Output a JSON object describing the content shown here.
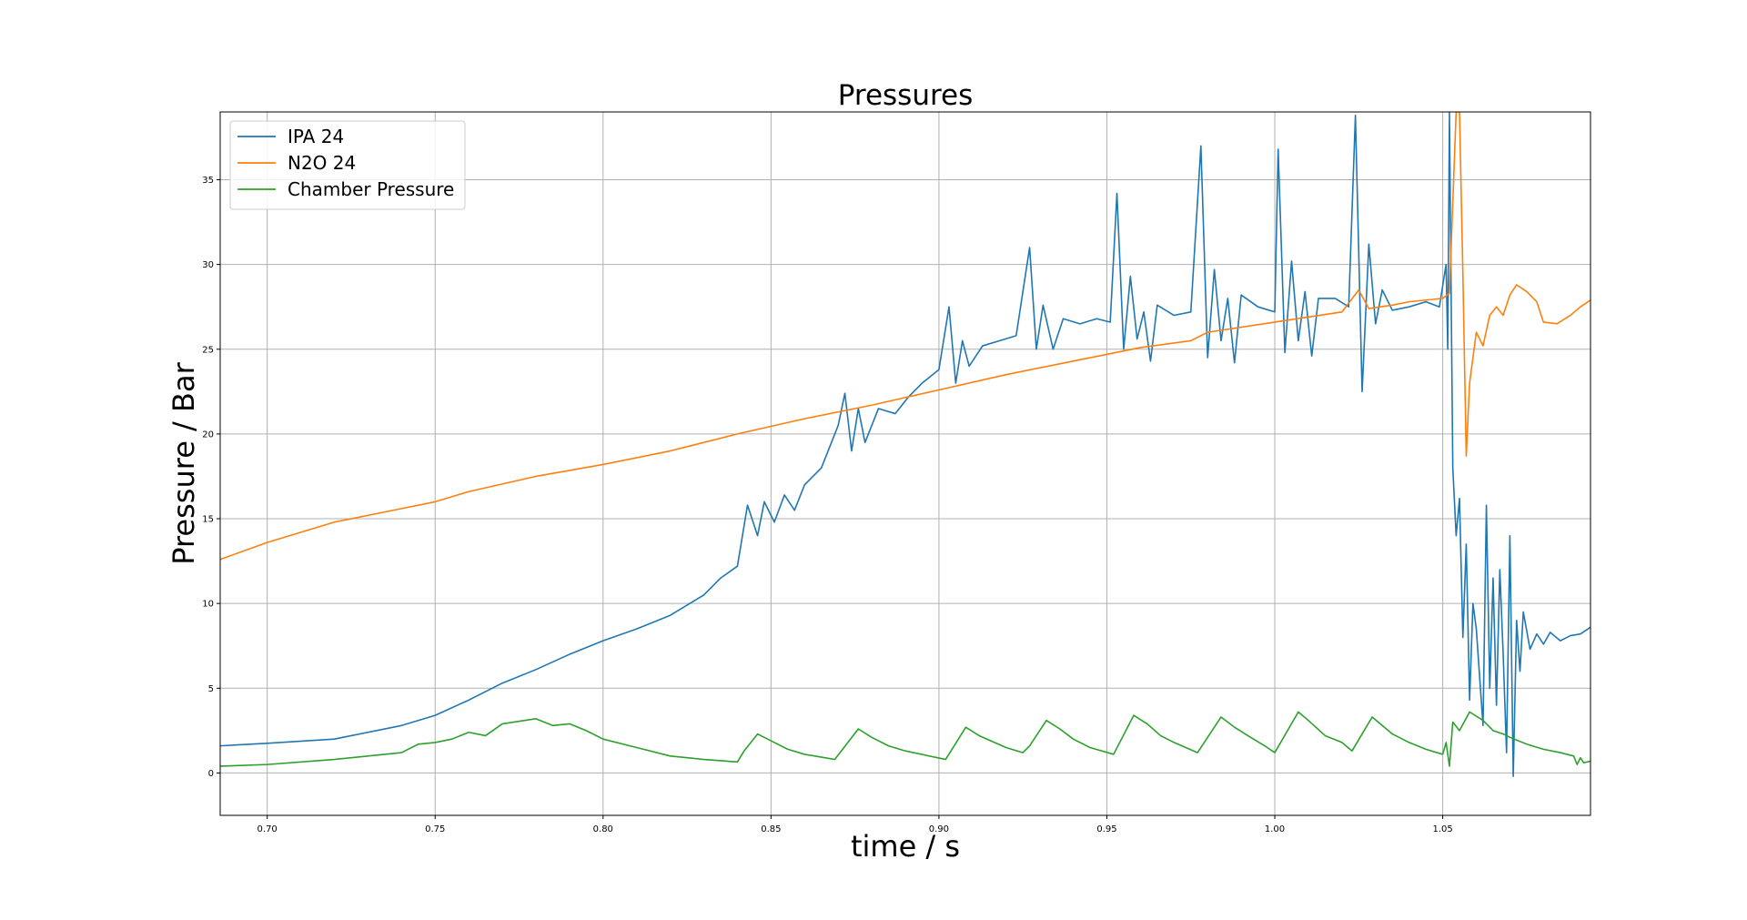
{
  "chart_data": {
    "type": "line",
    "title": "Pressures",
    "xlabel": "time / s",
    "ylabel": "Pressure / Bar",
    "xlim": [
      0.686,
      1.094
    ],
    "ylim": [
      -2.5,
      39
    ],
    "grid": true,
    "legend_position": "top-left",
    "xticks": [
      0.7,
      0.75,
      0.8,
      0.85,
      0.9,
      0.95,
      1.0,
      1.05
    ],
    "xtick_labels": [
      "0.70",
      "0.75",
      "0.80",
      "0.85",
      "0.90",
      "0.95",
      "1.00",
      "1.05"
    ],
    "yticks": [
      0,
      5,
      10,
      15,
      20,
      25,
      30,
      35
    ],
    "ytick_labels": [
      "0",
      "5",
      "10",
      "15",
      "20",
      "25",
      "30",
      "35"
    ],
    "series": [
      {
        "name": "IPA 24",
        "color": "#1f77b4",
        "points": [
          [
            0.686,
            1.6
          ],
          [
            0.7,
            1.75
          ],
          [
            0.72,
            2.0
          ],
          [
            0.74,
            2.8
          ],
          [
            0.75,
            3.4
          ],
          [
            0.76,
            4.3
          ],
          [
            0.77,
            5.3
          ],
          [
            0.78,
            6.1
          ],
          [
            0.79,
            7.0
          ],
          [
            0.8,
            7.8
          ],
          [
            0.81,
            8.5
          ],
          [
            0.82,
            9.3
          ],
          [
            0.83,
            10.5
          ],
          [
            0.835,
            11.5
          ],
          [
            0.84,
            12.2
          ],
          [
            0.843,
            15.8
          ],
          [
            0.846,
            14.0
          ],
          [
            0.848,
            16.0
          ],
          [
            0.851,
            14.8
          ],
          [
            0.854,
            16.4
          ],
          [
            0.857,
            15.5
          ],
          [
            0.86,
            17.0
          ],
          [
            0.865,
            18.0
          ],
          [
            0.87,
            20.5
          ],
          [
            0.872,
            22.4
          ],
          [
            0.874,
            19.0
          ],
          [
            0.876,
            21.5
          ],
          [
            0.878,
            19.5
          ],
          [
            0.882,
            21.5
          ],
          [
            0.887,
            21.2
          ],
          [
            0.891,
            22.2
          ],
          [
            0.895,
            23.0
          ],
          [
            0.9,
            23.8
          ],
          [
            0.903,
            27.5
          ],
          [
            0.905,
            23.0
          ],
          [
            0.907,
            25.5
          ],
          [
            0.909,
            24.0
          ],
          [
            0.913,
            25.2
          ],
          [
            0.918,
            25.5
          ],
          [
            0.923,
            25.8
          ],
          [
            0.927,
            31.0
          ],
          [
            0.929,
            25.0
          ],
          [
            0.931,
            27.6
          ],
          [
            0.934,
            25.0
          ],
          [
            0.937,
            26.8
          ],
          [
            0.942,
            26.5
          ],
          [
            0.947,
            26.8
          ],
          [
            0.951,
            26.6
          ],
          [
            0.953,
            34.2
          ],
          [
            0.955,
            25.0
          ],
          [
            0.957,
            29.3
          ],
          [
            0.959,
            25.6
          ],
          [
            0.961,
            27.2
          ],
          [
            0.963,
            24.3
          ],
          [
            0.965,
            27.6
          ],
          [
            0.97,
            27.0
          ],
          [
            0.975,
            27.2
          ],
          [
            0.978,
            37.0
          ],
          [
            0.98,
            24.5
          ],
          [
            0.982,
            29.7
          ],
          [
            0.984,
            25.5
          ],
          [
            0.986,
            28.0
          ],
          [
            0.988,
            24.2
          ],
          [
            0.99,
            28.2
          ],
          [
            0.995,
            27.5
          ],
          [
            1.0,
            27.2
          ],
          [
            1.001,
            36.8
          ],
          [
            1.003,
            24.8
          ],
          [
            1.005,
            30.2
          ],
          [
            1.007,
            25.5
          ],
          [
            1.009,
            28.4
          ],
          [
            1.011,
            24.6
          ],
          [
            1.013,
            28.0
          ],
          [
            1.018,
            28.0
          ],
          [
            1.022,
            27.5
          ],
          [
            1.024,
            38.8
          ],
          [
            1.026,
            22.5
          ],
          [
            1.028,
            31.2
          ],
          [
            1.03,
            26.5
          ],
          [
            1.032,
            28.5
          ],
          [
            1.035,
            27.3
          ],
          [
            1.04,
            27.5
          ],
          [
            1.045,
            27.8
          ],
          [
            1.049,
            27.5
          ],
          [
            1.051,
            30.0
          ],
          [
            1.0515,
            25.0
          ],
          [
            1.052,
            39.0
          ],
          [
            1.053,
            18.0
          ],
          [
            1.054,
            14.0
          ],
          [
            1.055,
            16.2
          ],
          [
            1.056,
            8.0
          ],
          [
            1.057,
            13.5
          ],
          [
            1.058,
            4.3
          ],
          [
            1.059,
            10.0
          ],
          [
            1.06,
            8.5
          ],
          [
            1.062,
            2.8
          ],
          [
            1.063,
            15.8
          ],
          [
            1.064,
            5.0
          ],
          [
            1.065,
            11.5
          ],
          [
            1.066,
            4.0
          ],
          [
            1.067,
            12.0
          ],
          [
            1.068,
            7.0
          ],
          [
            1.069,
            1.2
          ],
          [
            1.07,
            14.0
          ],
          [
            1.071,
            -0.2
          ],
          [
            1.072,
            9.0
          ],
          [
            1.073,
            6.0
          ],
          [
            1.074,
            9.5
          ],
          [
            1.076,
            7.3
          ],
          [
            1.078,
            8.2
          ],
          [
            1.08,
            7.6
          ],
          [
            1.082,
            8.3
          ],
          [
            1.085,
            7.8
          ],
          [
            1.088,
            8.1
          ],
          [
            1.091,
            8.2
          ],
          [
            1.094,
            8.6
          ]
        ]
      },
      {
        "name": "N2O 24",
        "color": "#ff7f0e",
        "points": [
          [
            0.686,
            12.6
          ],
          [
            0.7,
            13.6
          ],
          [
            0.72,
            14.8
          ],
          [
            0.74,
            15.6
          ],
          [
            0.75,
            16.0
          ],
          [
            0.76,
            16.6
          ],
          [
            0.78,
            17.5
          ],
          [
            0.8,
            18.2
          ],
          [
            0.82,
            19.0
          ],
          [
            0.84,
            20.0
          ],
          [
            0.86,
            20.9
          ],
          [
            0.88,
            21.7
          ],
          [
            0.9,
            22.6
          ],
          [
            0.92,
            23.5
          ],
          [
            0.94,
            24.3
          ],
          [
            0.96,
            25.1
          ],
          [
            0.975,
            25.5
          ],
          [
            0.98,
            26.0
          ],
          [
            1.0,
            26.6
          ],
          [
            1.02,
            27.2
          ],
          [
            1.025,
            28.5
          ],
          [
            1.028,
            27.4
          ],
          [
            1.035,
            27.6
          ],
          [
            1.04,
            27.8
          ],
          [
            1.05,
            28.0
          ],
          [
            1.052,
            28.3
          ],
          [
            1.054,
            39.0
          ],
          [
            1.055,
            39.0
          ],
          [
            1.056,
            29.5
          ],
          [
            1.057,
            18.7
          ],
          [
            1.058,
            23.0
          ],
          [
            1.06,
            26.0
          ],
          [
            1.062,
            25.2
          ],
          [
            1.064,
            27.0
          ],
          [
            1.066,
            27.5
          ],
          [
            1.068,
            27.0
          ],
          [
            1.07,
            28.2
          ],
          [
            1.072,
            28.8
          ],
          [
            1.075,
            28.4
          ],
          [
            1.078,
            27.8
          ],
          [
            1.08,
            26.6
          ],
          [
            1.084,
            26.5
          ],
          [
            1.088,
            27.0
          ],
          [
            1.091,
            27.5
          ],
          [
            1.094,
            27.9
          ]
        ]
      },
      {
        "name": "Chamber Pressure",
        "color": "#2ca02c",
        "points": [
          [
            0.686,
            0.4
          ],
          [
            0.7,
            0.5
          ],
          [
            0.72,
            0.8
          ],
          [
            0.74,
            1.2
          ],
          [
            0.745,
            1.7
          ],
          [
            0.75,
            1.8
          ],
          [
            0.755,
            2.0
          ],
          [
            0.76,
            2.4
          ],
          [
            0.765,
            2.2
          ],
          [
            0.77,
            2.9
          ],
          [
            0.78,
            3.2
          ],
          [
            0.785,
            2.8
          ],
          [
            0.79,
            2.9
          ],
          [
            0.795,
            2.5
          ],
          [
            0.8,
            2.0
          ],
          [
            0.81,
            1.5
          ],
          [
            0.82,
            1.0
          ],
          [
            0.83,
            0.8
          ],
          [
            0.84,
            0.65
          ],
          [
            0.842,
            1.3
          ],
          [
            0.846,
            2.3
          ],
          [
            0.85,
            1.9
          ],
          [
            0.855,
            1.4
          ],
          [
            0.86,
            1.1
          ],
          [
            0.869,
            0.8
          ],
          [
            0.876,
            2.6
          ],
          [
            0.88,
            2.1
          ],
          [
            0.885,
            1.6
          ],
          [
            0.89,
            1.3
          ],
          [
            0.902,
            0.8
          ],
          [
            0.908,
            2.7
          ],
          [
            0.912,
            2.2
          ],
          [
            0.92,
            1.5
          ],
          [
            0.925,
            1.2
          ],
          [
            0.927,
            1.6
          ],
          [
            0.932,
            3.1
          ],
          [
            0.936,
            2.6
          ],
          [
            0.94,
            2.0
          ],
          [
            0.945,
            1.5
          ],
          [
            0.952,
            1.1
          ],
          [
            0.958,
            3.4
          ],
          [
            0.962,
            2.9
          ],
          [
            0.966,
            2.2
          ],
          [
            0.97,
            1.8
          ],
          [
            0.977,
            1.2
          ],
          [
            0.984,
            3.3
          ],
          [
            0.988,
            2.7
          ],
          [
            0.992,
            2.2
          ],
          [
            0.997,
            1.6
          ],
          [
            1.0,
            1.2
          ],
          [
            1.007,
            3.6
          ],
          [
            1.01,
            3.1
          ],
          [
            1.015,
            2.2
          ],
          [
            1.02,
            1.8
          ],
          [
            1.023,
            1.3
          ],
          [
            1.029,
            3.3
          ],
          [
            1.032,
            2.8
          ],
          [
            1.035,
            2.3
          ],
          [
            1.04,
            1.8
          ],
          [
            1.045,
            1.4
          ],
          [
            1.05,
            1.1
          ],
          [
            1.051,
            1.8
          ],
          [
            1.052,
            0.4
          ],
          [
            1.053,
            3.0
          ],
          [
            1.055,
            2.5
          ],
          [
            1.058,
            3.6
          ],
          [
            1.062,
            3.1
          ],
          [
            1.065,
            2.5
          ],
          [
            1.068,
            2.3
          ],
          [
            1.07,
            2.1
          ],
          [
            1.075,
            1.7
          ],
          [
            1.08,
            1.4
          ],
          [
            1.085,
            1.2
          ],
          [
            1.089,
            1.0
          ],
          [
            1.09,
            0.5
          ],
          [
            1.091,
            0.9
          ],
          [
            1.092,
            0.6
          ],
          [
            1.094,
            0.7
          ]
        ]
      }
    ]
  }
}
